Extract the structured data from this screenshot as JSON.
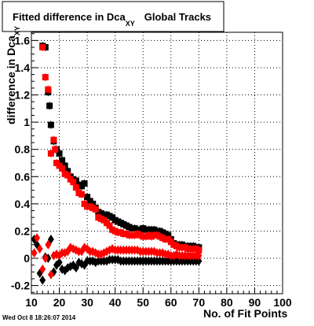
{
  "chart_data": {
    "type": "scatter",
    "title_main": "Fitted difference in Dca",
    "title_sub": "XY",
    "title_tail": "Global Tracks",
    "xlabel": "No. of Fit Points",
    "ylabel": "difference in Dca",
    "ylabel_sub": "XY",
    "xlim": [
      10,
      100
    ],
    "ylim": [
      -0.26,
      1.66
    ],
    "grid": true,
    "x_ticks": [
      "10",
      "20",
      "30",
      "40",
      "50",
      "60",
      "70",
      "80",
      "90",
      "100"
    ],
    "y_ticks": [
      "-0.2",
      "0",
      "0.2",
      "0.4",
      "0.6",
      "0.8",
      "1",
      "1.2",
      "1.4",
      "1.6"
    ],
    "timestamp": "Wed Oct  8 18:26:07 2014",
    "colors": {
      "black": "#000000",
      "red": "#ff0000"
    },
    "series": [
      {
        "marker": "square",
        "color": "#000000",
        "values": [
          [
            14,
            1.56
          ],
          [
            15,
            1.55
          ],
          [
            16,
            1.22
          ],
          [
            16.5,
            1.12
          ],
          [
            17,
            0.98
          ],
          [
            18,
            0.86
          ],
          [
            19,
            0.8
          ],
          [
            20,
            0.77
          ],
          [
            21,
            0.72
          ],
          [
            22,
            0.68
          ],
          [
            23,
            0.64
          ],
          [
            24,
            0.6
          ],
          [
            25,
            0.58
          ],
          [
            26,
            0.57
          ],
          [
            27,
            0.54
          ],
          [
            28,
            0.53
          ],
          [
            29,
            0.55
          ],
          [
            30,
            0.45
          ],
          [
            31,
            0.42
          ],
          [
            32,
            0.4
          ],
          [
            33,
            0.37
          ],
          [
            34,
            0.34
          ],
          [
            35,
            0.33
          ],
          [
            36,
            0.32
          ],
          [
            37,
            0.32
          ],
          [
            38,
            0.31
          ],
          [
            39,
            0.3
          ],
          [
            40,
            0.28
          ],
          [
            41,
            0.27
          ],
          [
            42,
            0.26
          ],
          [
            43,
            0.25
          ],
          [
            44,
            0.24
          ],
          [
            45,
            0.23
          ],
          [
            46,
            0.22
          ],
          [
            47,
            0.22
          ],
          [
            48,
            0.21
          ],
          [
            49,
            0.21
          ],
          [
            50,
            0.22
          ],
          [
            51,
            0.21
          ],
          [
            52,
            0.21
          ],
          [
            53,
            0.21
          ],
          [
            54,
            0.21
          ],
          [
            55,
            0.2
          ],
          [
            56,
            0.2
          ],
          [
            57,
            0.19
          ],
          [
            58,
            0.18
          ],
          [
            59,
            0.17
          ],
          [
            60,
            0.14
          ],
          [
            61,
            0.11
          ],
          [
            62,
            0.1
          ],
          [
            63,
            0.1
          ],
          [
            64,
            0.1
          ],
          [
            65,
            0.09
          ],
          [
            66,
            0.09
          ],
          [
            67,
            0.09
          ],
          [
            68,
            0.09
          ],
          [
            69,
            0.08
          ],
          [
            70,
            0.08
          ]
        ]
      },
      {
        "marker": "square",
        "color": "#ff0000",
        "values": [
          [
            14,
            1.55
          ],
          [
            15,
            1.33
          ],
          [
            16,
            1.24
          ],
          [
            17,
            0.77
          ],
          [
            18,
            0.87
          ],
          [
            18.5,
            0.8
          ],
          [
            19,
            0.7
          ],
          [
            20,
            0.68
          ],
          [
            21,
            0.66
          ],
          [
            22,
            0.62
          ],
          [
            23,
            0.61
          ],
          [
            24,
            0.58
          ],
          [
            25,
            0.56
          ],
          [
            26,
            0.52
          ],
          [
            27,
            0.48
          ],
          [
            28,
            0.47
          ],
          [
            29,
            0.4
          ],
          [
            30,
            0.38
          ],
          [
            31,
            0.38
          ],
          [
            32,
            0.37
          ],
          [
            33,
            0.36
          ],
          [
            34,
            0.3
          ],
          [
            35,
            0.29
          ],
          [
            36,
            0.28
          ],
          [
            37,
            0.26
          ],
          [
            38,
            0.24
          ],
          [
            39,
            0.21
          ],
          [
            40,
            0.2
          ],
          [
            41,
            0.19
          ],
          [
            42,
            0.19
          ],
          [
            43,
            0.18
          ],
          [
            44,
            0.18
          ],
          [
            45,
            0.17
          ],
          [
            46,
            0.17
          ],
          [
            47,
            0.17
          ],
          [
            48,
            0.18
          ],
          [
            49,
            0.17
          ],
          [
            50,
            0.16
          ],
          [
            51,
            0.16
          ],
          [
            52,
            0.17
          ],
          [
            53,
            0.16
          ],
          [
            54,
            0.17
          ],
          [
            55,
            0.17
          ],
          [
            56,
            0.16
          ],
          [
            57,
            0.15
          ],
          [
            58,
            0.14
          ],
          [
            59,
            0.14
          ],
          [
            60,
            0.12
          ],
          [
            61,
            0.1
          ],
          [
            62,
            0.09
          ],
          [
            63,
            0.08
          ],
          [
            64,
            0.08
          ],
          [
            65,
            0.08
          ],
          [
            66,
            0.07
          ],
          [
            67,
            0.07
          ],
          [
            68,
            0.07
          ],
          [
            69,
            0.07
          ],
          [
            70,
            0.06
          ]
        ]
      },
      {
        "marker": "diamond",
        "color": "#000000",
        "values": [
          [
            11,
            0.14
          ],
          [
            12,
            0.1
          ],
          [
            13,
            -0.11
          ],
          [
            14,
            -0.16
          ],
          [
            15,
            0.01
          ],
          [
            16,
            0.0
          ],
          [
            17,
            0.14
          ],
          [
            18,
            -0.1
          ],
          [
            19,
            -0.05
          ],
          [
            20,
            -0.03
          ],
          [
            21,
            -0.08
          ],
          [
            22,
            -0.09
          ],
          [
            23,
            -0.07
          ],
          [
            24,
            -0.06
          ],
          [
            25,
            -0.05
          ],
          [
            26,
            -0.07
          ],
          [
            27,
            -0.03
          ],
          [
            28,
            -0.04
          ],
          [
            29,
            -0.05
          ],
          [
            30,
            -0.02
          ],
          [
            31,
            -0.02
          ],
          [
            32,
            -0.02
          ],
          [
            33,
            -0.03
          ],
          [
            34,
            -0.02
          ],
          [
            35,
            -0.02
          ],
          [
            36,
            -0.02
          ],
          [
            37,
            -0.02
          ],
          [
            38,
            -0.01
          ],
          [
            39,
            -0.01
          ],
          [
            40,
            -0.01
          ],
          [
            41,
            -0.01
          ],
          [
            42,
            -0.02
          ],
          [
            43,
            -0.02
          ],
          [
            44,
            -0.02
          ],
          [
            45,
            -0.02
          ],
          [
            46,
            -0.02
          ],
          [
            47,
            -0.02
          ],
          [
            48,
            -0.02
          ],
          [
            49,
            -0.02
          ],
          [
            50,
            -0.02
          ],
          [
            51,
            -0.02
          ],
          [
            52,
            -0.02
          ],
          [
            53,
            -0.02
          ],
          [
            54,
            -0.02
          ],
          [
            55,
            -0.02
          ],
          [
            56,
            -0.02
          ],
          [
            57,
            -0.02
          ],
          [
            58,
            -0.02
          ],
          [
            59,
            -0.02
          ],
          [
            60,
            -0.02
          ],
          [
            61,
            -0.02
          ],
          [
            62,
            -0.02
          ],
          [
            63,
            -0.02
          ],
          [
            64,
            -0.02
          ],
          [
            65,
            -0.02
          ],
          [
            66,
            -0.02
          ],
          [
            67,
            -0.02
          ],
          [
            68,
            -0.02
          ],
          [
            69,
            -0.02
          ],
          [
            70,
            -0.02
          ]
        ]
      },
      {
        "marker": "diamond",
        "color": "#ff0000",
        "values": [
          [
            11,
            0.04
          ],
          [
            12,
            0.15
          ],
          [
            13,
            0.07
          ],
          [
            14,
            -0.08
          ],
          [
            15,
            0.0
          ],
          [
            16,
            0.1
          ],
          [
            17,
            -0.12
          ],
          [
            18,
            0.02
          ],
          [
            19,
            0.03
          ],
          [
            20,
            0.02
          ],
          [
            21,
            0.04
          ],
          [
            22,
            0.04
          ],
          [
            23,
            0.05
          ],
          [
            24,
            0.08
          ],
          [
            25,
            0.07
          ],
          [
            26,
            0.06
          ],
          [
            27,
            0.05
          ],
          [
            28,
            0.05
          ],
          [
            29,
            0.08
          ],
          [
            30,
            0.07
          ],
          [
            31,
            0.05
          ],
          [
            32,
            0.05
          ],
          [
            33,
            0.04
          ],
          [
            34,
            0.03
          ],
          [
            35,
            0.03
          ],
          [
            36,
            0.04
          ],
          [
            37,
            0.05
          ],
          [
            38,
            0.06
          ],
          [
            39,
            0.07
          ],
          [
            40,
            0.06
          ],
          [
            41,
            0.06
          ],
          [
            42,
            0.06
          ],
          [
            43,
            0.06
          ],
          [
            44,
            0.06
          ],
          [
            45,
            0.06
          ],
          [
            46,
            0.06
          ],
          [
            47,
            0.06
          ],
          [
            48,
            0.06
          ],
          [
            49,
            0.05
          ],
          [
            50,
            0.05
          ],
          [
            51,
            0.05
          ],
          [
            52,
            0.05
          ],
          [
            53,
            0.05
          ],
          [
            54,
            0.05
          ],
          [
            55,
            0.04
          ],
          [
            56,
            0.04
          ],
          [
            57,
            0.04
          ],
          [
            58,
            0.03
          ],
          [
            59,
            0.03
          ],
          [
            60,
            0.02
          ],
          [
            61,
            0.02
          ],
          [
            62,
            0.03
          ],
          [
            63,
            0.02
          ],
          [
            64,
            0.02
          ],
          [
            65,
            0.02
          ],
          [
            66,
            0.02
          ],
          [
            67,
            0.02
          ],
          [
            68,
            0.02
          ],
          [
            69,
            0.02
          ],
          [
            70,
            0.02
          ]
        ]
      }
    ]
  }
}
